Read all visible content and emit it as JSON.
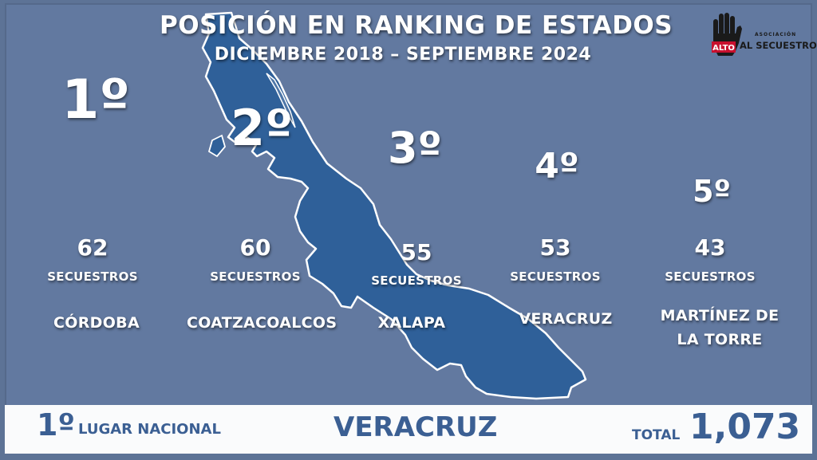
{
  "header": {
    "title": "POSICIÓN EN RANKING DE ESTADOS",
    "subtitle": "DICIEMBRE 2018 – SEPTIEMBRE 2024"
  },
  "logo": {
    "small_text": "ASOCIACIÓN",
    "alto": "ALTO",
    "main_text": "AL SECUESTRO",
    "icon": "raised-hand-icon"
  },
  "rankings": [
    {
      "rank": "1º",
      "count": "62",
      "unit": "SECUESTROS",
      "city": "CÓRDOBA"
    },
    {
      "rank": "2º",
      "count": "60",
      "unit": "SECUESTROS",
      "city": "COATZACOALCOS"
    },
    {
      "rank": "3º",
      "count": "55",
      "unit": "SECUESTROS",
      "city": "XALAPA"
    },
    {
      "rank": "4º",
      "count": "53",
      "unit": "SECUESTROS",
      "city": "VERACRUZ"
    },
    {
      "rank": "5º",
      "count": "43",
      "unit": "SECUESTROS",
      "city_line1": "MARTÍNEZ DE",
      "city_line2": "LA TORRE"
    }
  ],
  "footer": {
    "place_number": "1º",
    "place_text": "LUGAR NACIONAL",
    "state": "VERACRUZ",
    "total_label": "TOTAL",
    "total_value": "1,073"
  },
  "colors": {
    "background": "#6279a0",
    "map_fill": "#2f6099",
    "footer_text": "#3b5f93"
  }
}
